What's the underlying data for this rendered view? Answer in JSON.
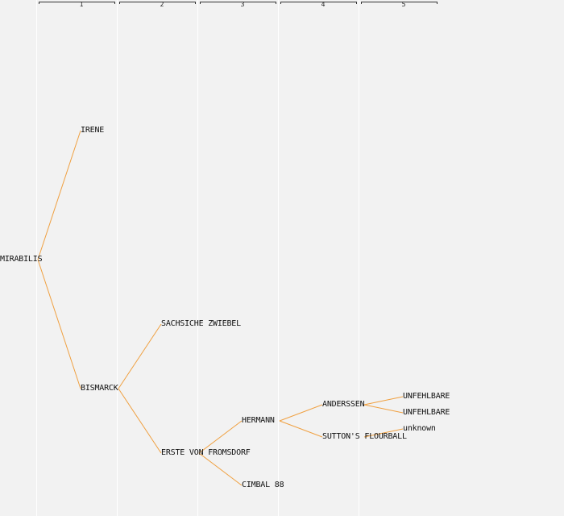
{
  "generations": [
    "1",
    "2",
    "3",
    "4",
    "5"
  ],
  "colors": {
    "background": "#f2f2f2",
    "edge": "#f0a040",
    "column": "#ffffff"
  },
  "nodes": {
    "root": "MIRABILIS",
    "g1_top": "IRENE",
    "g1_bottom": "BISMARCK",
    "g2_top": "SACHSICHE ZWIEBEL",
    "g2_bottom": "ERSTE VON FROMSDORF",
    "g3_top": "HERMANN",
    "g3_bottom": "CIMBAL 88",
    "g4_top": "ANDERSSEN",
    "g4_bottom": "SUTTON'S FLOURBALL",
    "g5_a": "UNFEHLBARE",
    "g5_b": "UNFEHLBARE",
    "g5_c": "unknown"
  }
}
